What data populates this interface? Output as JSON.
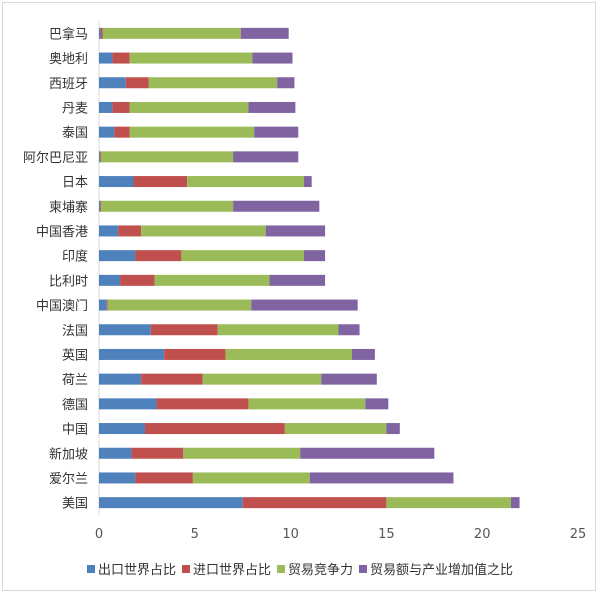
{
  "chart_data": {
    "type": "bar",
    "orientation": "horizontal",
    "stacked": true,
    "title": "",
    "xlabel": "",
    "ylabel": "",
    "xlim": [
      0,
      25
    ],
    "xticks": [
      0,
      5,
      10,
      15,
      20,
      25
    ],
    "grid": false,
    "legend_position": "bottom",
    "categories": [
      "巴拿马",
      "奥地利",
      "西班牙",
      "丹麦",
      "泰国",
      "阿尔巴尼亚",
      "日本",
      "柬埔寨",
      "中国香港",
      "印度",
      "比利时",
      "中国澳门",
      "法国",
      "英国",
      "荷兰",
      "德国",
      "中国",
      "新加坡",
      "爱尔兰",
      "美国"
    ],
    "series": [
      {
        "name": "出口世界占比",
        "color": "#4f81bd",
        "values": [
          0.1,
          0.7,
          1.4,
          0.7,
          0.8,
          0.05,
          1.8,
          0.05,
          1.0,
          1.9,
          1.1,
          0.4,
          2.7,
          3.4,
          2.2,
          3.0,
          2.4,
          1.7,
          1.9,
          7.5
        ]
      },
      {
        "name": "进口世界占比",
        "color": "#c0504d",
        "values": [
          0.1,
          0.9,
          1.2,
          0.9,
          0.8,
          0.05,
          2.8,
          0.05,
          1.2,
          2.4,
          1.8,
          0.05,
          3.5,
          3.2,
          3.2,
          4.8,
          7.3,
          2.7,
          3.0,
          7.5
        ]
      },
      {
        "name": "贸易竞争力",
        "color": "#9bbb59",
        "values": [
          7.2,
          6.4,
          6.7,
          6.2,
          6.5,
          6.9,
          6.1,
          6.9,
          6.5,
          6.4,
          6.0,
          7.5,
          6.3,
          6.6,
          6.2,
          6.1,
          5.3,
          6.1,
          6.1,
          6.5
        ]
      },
      {
        "name": "贸易额与产业增加值之比",
        "color": "#8064a2",
        "values": [
          2.5,
          2.1,
          0.9,
          2.45,
          2.3,
          3.4,
          0.4,
          4.5,
          3.1,
          1.1,
          2.9,
          5.55,
          1.1,
          1.2,
          2.9,
          1.2,
          0.7,
          7.0,
          7.5,
          0.45
        ]
      }
    ]
  }
}
